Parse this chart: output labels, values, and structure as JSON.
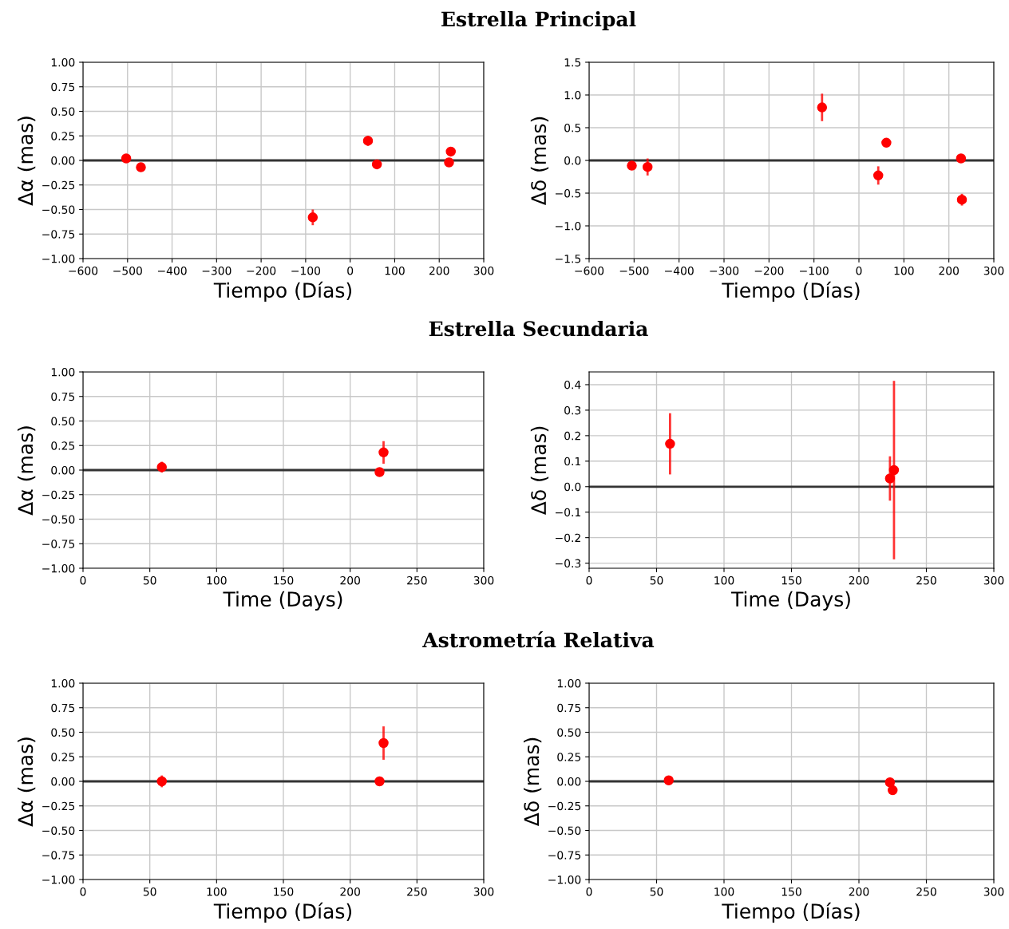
{
  "chart_data": [
    {
      "type": "scatter",
      "title": "Estrella Principal",
      "xlabel": "Tiempo (Días)",
      "ylabel": "Δα (mas)",
      "color": "#ff0000",
      "marker": "circle",
      "grid": true,
      "x": [
        -503,
        -470,
        -84,
        40,
        60,
        222,
        226
      ],
      "values": [
        0.02,
        -0.07,
        -0.58,
        0.2,
        -0.04,
        -0.02,
        0.09
      ],
      "errors": [
        null,
        0.03,
        0.08,
        0.05,
        null,
        null,
        null
      ],
      "xlim": [
        -600,
        300
      ],
      "xticks": [
        {
          "value": -600,
          "label": "−600"
        },
        {
          "value": -500,
          "label": "−500"
        },
        {
          "value": -400,
          "label": "−400"
        },
        {
          "value": -300,
          "label": "−300"
        },
        {
          "value": -200,
          "label": "−200"
        },
        {
          "value": -100,
          "label": "−100"
        },
        0,
        100,
        200,
        300
      ],
      "ylim": [
        -1,
        1
      ],
      "yticks": [
        {
          "value": 1,
          "label": "1.00"
        },
        {
          "value": 0.75,
          "label": "0.75"
        },
        {
          "value": 0.5,
          "label": "0.50"
        },
        {
          "value": 0.25,
          "label": "0.25"
        },
        {
          "value": 0,
          "label": "0.00"
        },
        {
          "value": -0.25,
          "label": "−0.25"
        },
        {
          "value": -0.5,
          "label": "−0.50"
        },
        {
          "value": -0.75,
          "label": "−0.75"
        },
        {
          "value": -1,
          "label": "−1.00"
        }
      ],
      "ref_lines": [
        {
          "axis": "y",
          "value": 0,
          "color": "#333333"
        }
      ]
    },
    {
      "type": "scatter",
      "xlabel": "Tiempo (Días)",
      "ylabel": "Δδ (mas)",
      "color": "#ff0000",
      "marker": "circle",
      "grid": true,
      "x": [
        -505,
        -470,
        -82,
        43,
        61,
        227,
        229
      ],
      "values": [
        -0.08,
        -0.1,
        0.81,
        -0.23,
        0.27,
        0.03,
        -0.6
      ],
      "errors": [
        null,
        0.13,
        0.21,
        0.14,
        null,
        null,
        0.09
      ],
      "xlim": [
        -600,
        300
      ],
      "xticks": [
        {
          "value": -600,
          "label": "−600"
        },
        {
          "value": -500,
          "label": "−500"
        },
        {
          "value": -400,
          "label": "−400"
        },
        {
          "value": -300,
          "label": "−300"
        },
        {
          "value": -200,
          "label": "−200"
        },
        {
          "value": -100,
          "label": "−100"
        },
        0,
        100,
        200,
        300
      ],
      "ylim": [
        -1.5,
        1.5
      ],
      "yticks": [
        1.5,
        {
          "value": 1.0,
          "label": "1.0"
        },
        0.5,
        {
          "value": 0.0,
          "label": "0.0"
        },
        {
          "value": -0.5,
          "label": "−0.5"
        },
        {
          "value": -1.0,
          "label": "−1.0"
        },
        {
          "value": -1.5,
          "label": "−1.5"
        }
      ],
      "ref_lines": [
        {
          "axis": "y",
          "value": 0,
          "color": "#333333"
        }
      ]
    },
    {
      "type": "scatter",
      "title": "Estrella Secundaria",
      "xlabel": "Time (Days)",
      "ylabel": "Δα (mas)",
      "color": "#ff0000",
      "marker": "circle",
      "grid": true,
      "x": [
        59,
        222,
        225
      ],
      "values": [
        0.03,
        -0.02,
        0.18
      ],
      "errors": [
        0.055,
        null,
        0.115
      ],
      "xlim": [
        0,
        300
      ],
      "xticks": [
        0,
        50,
        100,
        150,
        200,
        250,
        300
      ],
      "ylim": [
        -1,
        1
      ],
      "yticks": [
        {
          "value": 1,
          "label": "1.00"
        },
        {
          "value": 0.75,
          "label": "0.75"
        },
        {
          "value": 0.5,
          "label": "0.50"
        },
        {
          "value": 0.25,
          "label": "0.25"
        },
        {
          "value": 0,
          "label": "0.00"
        },
        {
          "value": -0.25,
          "label": "−0.25"
        },
        {
          "value": -0.5,
          "label": "−0.50"
        },
        {
          "value": -0.75,
          "label": "−0.75"
        },
        {
          "value": -1,
          "label": "−1.00"
        }
      ],
      "ref_lines": [
        {
          "axis": "y",
          "value": 0,
          "color": "#333333"
        }
      ]
    },
    {
      "type": "scatter",
      "xlabel": "Time (Days)",
      "ylabel": "Δδ (mas)",
      "color": "#ff0000",
      "marker": "circle",
      "grid": true,
      "x": [
        60,
        223,
        226
      ],
      "values": [
        0.168,
        0.032,
        0.065
      ],
      "errors": [
        0.12,
        0.087,
        0.35
      ],
      "xlim": [
        0,
        300
      ],
      "xticks": [
        0,
        50,
        100,
        150,
        200,
        250,
        300
      ],
      "ylim": [
        -0.32,
        0.45
      ],
      "yticks": [
        0.4,
        0.3,
        0.2,
        0.1,
        {
          "value": 0.0,
          "label": "0.0"
        },
        {
          "value": -0.1,
          "label": "−0.1"
        },
        {
          "value": -0.2,
          "label": "−0.2"
        },
        {
          "value": -0.3,
          "label": "−0.3"
        }
      ],
      "ref_lines": [
        {
          "axis": "y",
          "value": 0,
          "color": "#333333"
        }
      ]
    },
    {
      "type": "scatter",
      "title": "Astrometría Relativa",
      "xlabel": "Tiempo (Días)",
      "ylabel": "Δα (mas)",
      "color": "#ff0000",
      "marker": "circle",
      "grid": true,
      "x": [
        59,
        222,
        225
      ],
      "values": [
        0.0,
        0.0,
        0.39
      ],
      "errors": [
        0.06,
        null,
        0.17
      ],
      "xlim": [
        0,
        300
      ],
      "xticks": [
        0,
        50,
        100,
        150,
        200,
        250,
        300
      ],
      "ylim": [
        -1,
        1
      ],
      "yticks": [
        {
          "value": 1,
          "label": "1.00"
        },
        {
          "value": 0.75,
          "label": "0.75"
        },
        {
          "value": 0.5,
          "label": "0.50"
        },
        {
          "value": 0.25,
          "label": "0.25"
        },
        {
          "value": 0,
          "label": "0.00"
        },
        {
          "value": -0.25,
          "label": "−0.25"
        },
        {
          "value": -0.5,
          "label": "−0.50"
        },
        {
          "value": -0.75,
          "label": "−0.75"
        },
        {
          "value": -1,
          "label": "−1.00"
        }
      ],
      "ref_lines": [
        {
          "axis": "y",
          "value": 0,
          "color": "#333333"
        }
      ]
    },
    {
      "type": "scatter",
      "xlabel": "Tiempo (Días)",
      "ylabel": "Δδ (mas)",
      "color": "#ff0000",
      "marker": "circle",
      "grid": true,
      "x": [
        59,
        223,
        225
      ],
      "values": [
        0.01,
        -0.01,
        -0.09
      ],
      "xlim": [
        0,
        300
      ],
      "xticks": [
        0,
        50,
        100,
        150,
        200,
        250,
        300
      ],
      "ylim": [
        -1,
        1
      ],
      "yticks": [
        {
          "value": 1,
          "label": "1.00"
        },
        {
          "value": 0.75,
          "label": "0.75"
        },
        {
          "value": 0.5,
          "label": "0.50"
        },
        {
          "value": 0.25,
          "label": "0.25"
        },
        {
          "value": 0,
          "label": "0.00"
        },
        {
          "value": -0.25,
          "label": "−0.25"
        },
        {
          "value": -0.5,
          "label": "−0.50"
        },
        {
          "value": -0.75,
          "label": "−0.75"
        },
        {
          "value": -1,
          "label": "−1.00"
        }
      ],
      "ref_lines": [
        {
          "axis": "y",
          "value": 0,
          "color": "#333333"
        }
      ]
    }
  ]
}
